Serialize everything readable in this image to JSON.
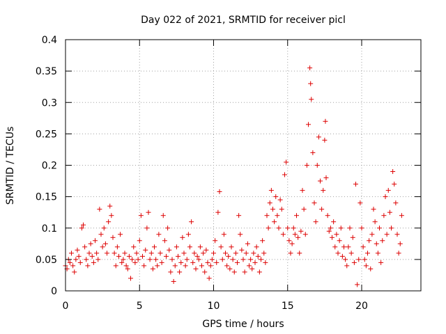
{
  "chart_data": {
    "type": "scatter",
    "title": "Day 022 of 2021, SRMTID for receiver picl",
    "xlabel": "GPS time / hours",
    "ylabel": "SRMTID / TECUs",
    "xlim": [
      0,
      24
    ],
    "ylim": [
      0,
      0.4
    ],
    "xticks": [
      0,
      5,
      10,
      15,
      20
    ],
    "xtick_labels": [
      "0",
      "5",
      "10",
      "15",
      "20"
    ],
    "yticks": [
      0,
      0.05,
      0.1,
      0.15,
      0.2,
      0.25,
      0.3,
      0.35,
      0.4
    ],
    "ytick_labels": [
      "0",
      "0.05",
      "0.1",
      "0.15",
      "0.2",
      "0.25",
      "0.3",
      "0.35",
      "0.4"
    ],
    "grid": true,
    "marker": "+",
    "color": "#dd0000",
    "series": [
      {
        "name": "SRMTID",
        "points": [
          [
            0.0,
            0.04
          ],
          [
            0.1,
            0.035
          ],
          [
            0.2,
            0.05
          ],
          [
            0.3,
            0.045
          ],
          [
            0.4,
            0.06
          ],
          [
            0.5,
            0.04
          ],
          [
            0.6,
            0.03
          ],
          [
            0.7,
            0.05
          ],
          [
            0.8,
            0.065
          ],
          [
            0.9,
            0.055
          ],
          [
            1.0,
            0.045
          ],
          [
            1.1,
            0.1
          ],
          [
            1.2,
            0.105
          ],
          [
            1.3,
            0.07
          ],
          [
            1.4,
            0.05
          ],
          [
            1.5,
            0.04
          ],
          [
            1.6,
            0.06
          ],
          [
            1.7,
            0.075
          ],
          [
            1.8,
            0.055
          ],
          [
            1.9,
            0.045
          ],
          [
            2.0,
            0.08
          ],
          [
            2.1,
            0.06
          ],
          [
            2.2,
            0.05
          ],
          [
            2.3,
            0.13
          ],
          [
            2.4,
            0.09
          ],
          [
            2.5,
            0.07
          ],
          [
            2.6,
            0.1
          ],
          [
            2.7,
            0.075
          ],
          [
            2.8,
            0.06
          ],
          [
            2.9,
            0.11
          ],
          [
            3.0,
            0.135
          ],
          [
            3.1,
            0.12
          ],
          [
            3.2,
            0.085
          ],
          [
            3.3,
            0.06
          ],
          [
            3.4,
            0.04
          ],
          [
            3.5,
            0.07
          ],
          [
            3.6,
            0.055
          ],
          [
            3.7,
            0.09
          ],
          [
            3.8,
            0.045
          ],
          [
            3.9,
            0.05
          ],
          [
            4.0,
            0.06
          ],
          [
            4.1,
            0.04
          ],
          [
            4.2,
            0.035
          ],
          [
            4.3,
            0.055
          ],
          [
            4.4,
            0.02
          ],
          [
            4.5,
            0.05
          ],
          [
            4.6,
            0.07
          ],
          [
            4.7,
            0.045
          ],
          [
            4.8,
            0.06
          ],
          [
            4.9,
            0.05
          ],
          [
            5.0,
            0.08
          ],
          [
            5.1,
            0.12
          ],
          [
            5.2,
            0.055
          ],
          [
            5.3,
            0.04
          ],
          [
            5.4,
            0.065
          ],
          [
            5.5,
            0.1
          ],
          [
            5.6,
            0.125
          ],
          [
            5.7,
            0.05
          ],
          [
            5.8,
            0.06
          ],
          [
            5.9,
            0.035
          ],
          [
            6.0,
            0.07
          ],
          [
            6.1,
            0.05
          ],
          [
            6.2,
            0.04
          ],
          [
            6.3,
            0.09
          ],
          [
            6.4,
            0.06
          ],
          [
            6.5,
            0.045
          ],
          [
            6.6,
            0.12
          ],
          [
            6.7,
            0.08
          ],
          [
            6.8,
            0.055
          ],
          [
            6.9,
            0.1
          ],
          [
            7.0,
            0.065
          ],
          [
            7.1,
            0.03
          ],
          [
            7.2,
            0.05
          ],
          [
            7.3,
            0.015
          ],
          [
            7.4,
            0.04
          ],
          [
            7.5,
            0.07
          ],
          [
            7.6,
            0.055
          ],
          [
            7.7,
            0.03
          ],
          [
            7.8,
            0.045
          ],
          [
            7.9,
            0.085
          ],
          [
            8.0,
            0.06
          ],
          [
            8.1,
            0.04
          ],
          [
            8.2,
            0.05
          ],
          [
            8.3,
            0.09
          ],
          [
            8.4,
            0.07
          ],
          [
            8.5,
            0.11
          ],
          [
            8.6,
            0.045
          ],
          [
            8.7,
            0.06
          ],
          [
            8.8,
            0.035
          ],
          [
            8.9,
            0.055
          ],
          [
            9.0,
            0.05
          ],
          [
            9.1,
            0.07
          ],
          [
            9.2,
            0.04
          ],
          [
            9.3,
            0.06
          ],
          [
            9.4,
            0.03
          ],
          [
            9.5,
            0.065
          ],
          [
            9.6,
            0.045
          ],
          [
            9.7,
            0.02
          ],
          [
            9.8,
            0.04
          ],
          [
            9.9,
            0.05
          ],
          [
            10.0,
            0.06
          ],
          [
            10.1,
            0.08
          ],
          [
            10.2,
            0.045
          ],
          [
            10.3,
            0.125
          ],
          [
            10.4,
            0.158
          ],
          [
            10.5,
            0.07
          ],
          [
            10.6,
            0.05
          ],
          [
            10.7,
            0.09
          ],
          [
            10.8,
            0.06
          ],
          [
            10.9,
            0.04
          ],
          [
            11.0,
            0.055
          ],
          [
            11.1,
            0.035
          ],
          [
            11.2,
            0.07
          ],
          [
            11.3,
            0.05
          ],
          [
            11.4,
            0.03
          ],
          [
            11.5,
            0.06
          ],
          [
            11.6,
            0.045
          ],
          [
            11.7,
            0.12
          ],
          [
            11.8,
            0.09
          ],
          [
            11.9,
            0.065
          ],
          [
            12.0,
            0.05
          ],
          [
            12.1,
            0.03
          ],
          [
            12.2,
            0.06
          ],
          [
            12.3,
            0.075
          ],
          [
            12.4,
            0.04
          ],
          [
            12.5,
            0.05
          ],
          [
            12.6,
            0.035
          ],
          [
            12.7,
            0.06
          ],
          [
            12.8,
            0.045
          ],
          [
            12.9,
            0.07
          ],
          [
            13.0,
            0.055
          ],
          [
            13.1,
            0.03
          ],
          [
            13.2,
            0.05
          ],
          [
            13.3,
            0.08
          ],
          [
            13.4,
            0.06
          ],
          [
            13.5,
            0.045
          ],
          [
            13.6,
            0.12
          ],
          [
            13.7,
            0.1
          ],
          [
            13.8,
            0.14
          ],
          [
            13.9,
            0.16
          ],
          [
            14.0,
            0.13
          ],
          [
            14.1,
            0.11
          ],
          [
            14.2,
            0.15
          ],
          [
            14.3,
            0.12
          ],
          [
            14.4,
            0.1
          ],
          [
            14.5,
            0.145
          ],
          [
            14.6,
            0.13
          ],
          [
            14.7,
            0.09
          ],
          [
            14.8,
            0.185
          ],
          [
            14.9,
            0.205
          ],
          [
            15.0,
            0.1
          ],
          [
            15.1,
            0.08
          ],
          [
            15.2,
            0.06
          ],
          [
            15.3,
            0.075
          ],
          [
            15.4,
            0.1
          ],
          [
            15.5,
            0.09
          ],
          [
            15.6,
            0.12
          ],
          [
            15.7,
            0.085
          ],
          [
            15.8,
            0.06
          ],
          [
            15.9,
            0.095
          ],
          [
            16.0,
            0.16
          ],
          [
            16.1,
            0.13
          ],
          [
            16.2,
            0.09
          ],
          [
            16.3,
            0.2
          ],
          [
            16.4,
            0.265
          ],
          [
            16.5,
            0.355
          ],
          [
            16.55,
            0.33
          ],
          [
            16.6,
            0.305
          ],
          [
            16.7,
            0.22
          ],
          [
            16.8,
            0.14
          ],
          [
            16.9,
            0.11
          ],
          [
            17.0,
            0.2
          ],
          [
            17.1,
            0.245
          ],
          [
            17.2,
            0.175
          ],
          [
            17.3,
            0.13
          ],
          [
            17.4,
            0.16
          ],
          [
            17.5,
            0.24
          ],
          [
            17.55,
            0.27
          ],
          [
            17.6,
            0.18
          ],
          [
            17.7,
            0.12
          ],
          [
            17.8,
            0.095
          ],
          [
            17.9,
            0.1
          ],
          [
            18.0,
            0.085
          ],
          [
            18.1,
            0.11
          ],
          [
            18.2,
            0.07
          ],
          [
            18.3,
            0.09
          ],
          [
            18.4,
            0.06
          ],
          [
            18.5,
            0.08
          ],
          [
            18.6,
            0.1
          ],
          [
            18.7,
            0.055
          ],
          [
            18.8,
            0.07
          ],
          [
            18.9,
            0.05
          ],
          [
            19.0,
            0.04
          ],
          [
            19.1,
            0.07
          ],
          [
            19.2,
            0.1
          ],
          [
            19.3,
            0.06
          ],
          [
            19.4,
            0.085
          ],
          [
            19.5,
            0.045
          ],
          [
            19.6,
            0.17
          ],
          [
            19.7,
            0.01
          ],
          [
            19.8,
            0.05
          ],
          [
            19.9,
            0.14
          ],
          [
            20.0,
            0.1
          ],
          [
            20.1,
            0.07
          ],
          [
            20.2,
            0.05
          ],
          [
            20.3,
            0.04
          ],
          [
            20.4,
            0.06
          ],
          [
            20.5,
            0.08
          ],
          [
            20.6,
            0.035
          ],
          [
            20.7,
            0.09
          ],
          [
            20.8,
            0.13
          ],
          [
            20.9,
            0.11
          ],
          [
            21.0,
            0.075
          ],
          [
            21.1,
            0.06
          ],
          [
            21.2,
            0.1
          ],
          [
            21.3,
            0.045
          ],
          [
            21.4,
            0.08
          ],
          [
            21.5,
            0.12
          ],
          [
            21.6,
            0.15
          ],
          [
            21.7,
            0.09
          ],
          [
            21.8,
            0.16
          ],
          [
            21.9,
            0.125
          ],
          [
            22.0,
            0.1
          ],
          [
            22.1,
            0.19
          ],
          [
            22.2,
            0.17
          ],
          [
            22.3,
            0.14
          ],
          [
            22.4,
            0.09
          ],
          [
            22.5,
            0.06
          ],
          [
            22.6,
            0.075
          ],
          [
            22.7,
            0.12
          ]
        ]
      }
    ]
  }
}
